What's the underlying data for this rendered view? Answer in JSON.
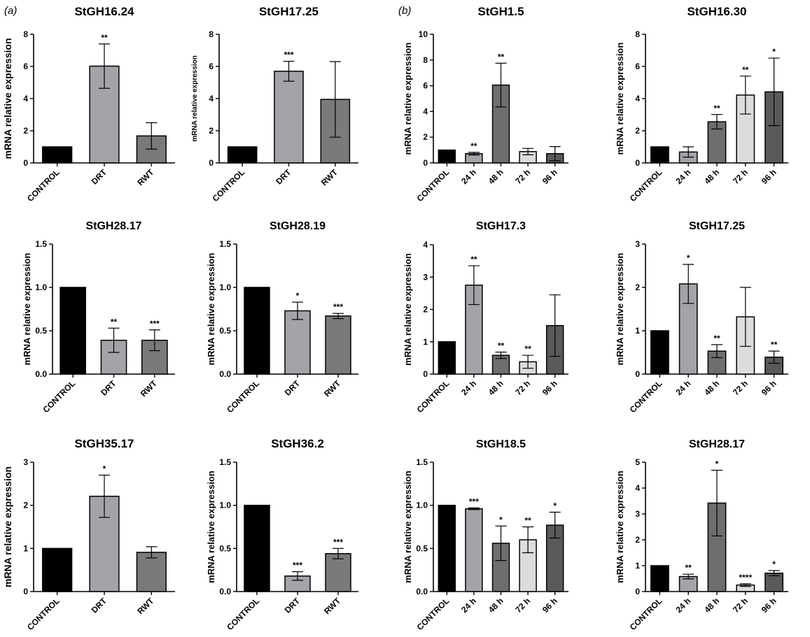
{
  "panels": [
    {
      "label": "(a)"
    },
    {
      "label": "(b)"
    }
  ],
  "chart_data": [
    {
      "type": "bar",
      "title": "StGH16.24",
      "ylabel": "mRNA relative expression",
      "ylim": [
        0,
        8
      ],
      "yticks": [
        0,
        2,
        4,
        6,
        8
      ],
      "categories": [
        "CONTROL",
        "DRT",
        "RWT"
      ],
      "values": [
        1,
        6.02,
        1.68
      ],
      "errors": [
        0,
        1.38,
        0.82
      ],
      "significance": [
        "",
        "**",
        ""
      ],
      "colors": [
        "#000000",
        "#a3a3a8",
        "#7a7a7a"
      ]
    },
    {
      "type": "bar",
      "title": "StGH17.25",
      "ylabel": "mRNA relative expression",
      "ylim": [
        0,
        8
      ],
      "yticks": [
        0,
        2,
        4,
        6,
        8
      ],
      "categories": [
        "CONTROL",
        "DRT",
        "RWT"
      ],
      "values": [
        1,
        5.7,
        3.95
      ],
      "errors": [
        0,
        0.62,
        2.35
      ],
      "significance": [
        "",
        "***",
        ""
      ],
      "colors": [
        "#000000",
        "#a3a3a8",
        "#7a7a7a"
      ]
    },
    {
      "type": "bar",
      "title": "StGH1.5",
      "ylabel": "mRNA relative expression",
      "ylim": [
        0,
        10
      ],
      "yticks": [
        0,
        2,
        4,
        6,
        8,
        10
      ],
      "categories": [
        "CONTROL",
        "24 h",
        "48 h",
        "72 h",
        "96 h"
      ],
      "values": [
        1,
        0.72,
        6.05,
        0.88,
        0.72
      ],
      "errors": [
        0,
        0.1,
        1.7,
        0.25,
        0.55
      ],
      "significance": [
        "",
        "**",
        "**",
        "",
        ""
      ],
      "colors": [
        "#000000",
        "#a3a3a8",
        "#6e6e6e",
        "#dcdcdc",
        "#5a5a5a"
      ]
    },
    {
      "type": "bar",
      "title": "StGH16.30",
      "ylabel": "mRNA relative expression",
      "ylim": [
        0,
        8
      ],
      "yticks": [
        0,
        2,
        4,
        6,
        8
      ],
      "categories": [
        "CONTROL",
        "24 h",
        "48 h",
        "72 h",
        "96 h"
      ],
      "values": [
        1,
        0.68,
        2.56,
        4.22,
        4.42
      ],
      "errors": [
        0,
        0.32,
        0.45,
        1.18,
        2.1
      ],
      "significance": [
        "",
        "",
        "**",
        "**",
        "*"
      ],
      "colors": [
        "#000000",
        "#a3a3a8",
        "#6e6e6e",
        "#dcdcdc",
        "#5a5a5a"
      ]
    },
    {
      "type": "bar",
      "title": "StGH28.17",
      "ylabel": "mRNA relative expression",
      "ylim": [
        0,
        1.5
      ],
      "yticks": [
        "0.0",
        "0.5",
        "1.0",
        "1.5"
      ],
      "categories": [
        "CONTROL",
        "DRT",
        "RWT"
      ],
      "values": [
        1,
        0.39,
        0.39
      ],
      "errors": [
        0,
        0.14,
        0.12
      ],
      "significance": [
        "",
        "**",
        "***"
      ],
      "colors": [
        "#000000",
        "#a3a3a8",
        "#7a7a7a"
      ]
    },
    {
      "type": "bar",
      "title": "StGH28.19",
      "ylabel": "mRNA relative expression",
      "ylim": [
        0,
        1.5
      ],
      "yticks": [
        "0.0",
        "0.5",
        "1.0",
        "1.5"
      ],
      "categories": [
        "CONTROL",
        "DRT",
        "RWT"
      ],
      "values": [
        1,
        0.73,
        0.67
      ],
      "errors": [
        0,
        0.1,
        0.03
      ],
      "significance": [
        "",
        "*",
        "***"
      ],
      "colors": [
        "#000000",
        "#a3a3a8",
        "#7a7a7a"
      ]
    },
    {
      "type": "bar",
      "title": "StGH17.3",
      "ylabel": "mRNA relative expression",
      "ylim": [
        0,
        4
      ],
      "yticks": [
        0,
        1,
        2,
        3,
        4
      ],
      "categories": [
        "CONTROL",
        "24 h",
        "48 h",
        "72 h",
        "96 h"
      ],
      "values": [
        1,
        2.75,
        0.58,
        0.38,
        1.5
      ],
      "errors": [
        0,
        0.6,
        0.1,
        0.2,
        0.95
      ],
      "significance": [
        "",
        "**",
        "**",
        "**",
        ""
      ],
      "colors": [
        "#000000",
        "#a3a3a8",
        "#6e6e6e",
        "#dcdcdc",
        "#5a5a5a"
      ]
    },
    {
      "type": "bar",
      "title": "StGH17.25",
      "ylabel": "mRNA relative expression",
      "ylim": [
        0,
        3
      ],
      "yticks": [
        0,
        1,
        2,
        3
      ],
      "categories": [
        "CONTROL",
        "24 h",
        "48 h",
        "72 h",
        "96 h"
      ],
      "values": [
        1,
        2.08,
        0.53,
        1.32,
        0.39
      ],
      "errors": [
        0,
        0.45,
        0.15,
        0.68,
        0.14
      ],
      "significance": [
        "",
        "*",
        "**",
        "",
        "**"
      ],
      "colors": [
        "#000000",
        "#a3a3a8",
        "#6e6e6e",
        "#dcdcdc",
        "#5a5a5a"
      ]
    },
    {
      "type": "bar",
      "title": "StGH35.17",
      "ylabel": "mRNA relative expression",
      "ylim": [
        0,
        3
      ],
      "yticks": [
        0,
        1,
        2,
        3
      ],
      "categories": [
        "CONTROL",
        "DRT",
        "RWT"
      ],
      "values": [
        1,
        2.21,
        0.91
      ],
      "errors": [
        0,
        0.49,
        0.13
      ],
      "significance": [
        "",
        "*",
        ""
      ],
      "colors": [
        "#000000",
        "#a3a3a8",
        "#7a7a7a"
      ]
    },
    {
      "type": "bar",
      "title": "StGH36.2",
      "ylabel": "mRNA relative expression",
      "ylim": [
        0,
        1.5
      ],
      "yticks": [
        "0.0",
        "0.5",
        "1.0",
        "1.5"
      ],
      "categories": [
        "CONTROL",
        "DRT",
        "RWT"
      ],
      "values": [
        1,
        0.18,
        0.44
      ],
      "errors": [
        0,
        0.05,
        0.06
      ],
      "significance": [
        "",
        "***",
        "***"
      ],
      "colors": [
        "#000000",
        "#a3a3a8",
        "#7a7a7a"
      ]
    },
    {
      "type": "bar",
      "title": "StGH18.5",
      "ylabel": "mRNA relative expression",
      "ylim": [
        0,
        1.5
      ],
      "yticks": [
        "0.0",
        "0.5",
        "1.0",
        "1.5"
      ],
      "categories": [
        "CONTROL",
        "24 h",
        "48 h",
        "72 h",
        "96 h"
      ],
      "values": [
        1,
        0.96,
        0.56,
        0.6,
        0.77
      ],
      "errors": [
        0,
        0.01,
        0.2,
        0.15,
        0.15
      ],
      "significance": [
        "",
        "***",
        "*",
        "**",
        "*"
      ],
      "colors": [
        "#000000",
        "#a3a3a8",
        "#6e6e6e",
        "#dcdcdc",
        "#5a5a5a"
      ]
    },
    {
      "type": "bar",
      "title": "StGH28.17",
      "ylabel": "mRNA relative expression",
      "ylim": [
        0,
        5
      ],
      "yticks": [
        0,
        1,
        2,
        3,
        4,
        5
      ],
      "categories": [
        "CONTROL",
        "24 h",
        "48 h",
        "72 h",
        "96 h"
      ],
      "values": [
        1,
        0.58,
        3.42,
        0.25,
        0.71
      ],
      "errors": [
        0,
        0.09,
        1.27,
        0.05,
        0.1
      ],
      "significance": [
        "",
        "**",
        "*",
        "****",
        "*"
      ],
      "colors": [
        "#000000",
        "#a3a3a8",
        "#6e6e6e",
        "#dcdcdc",
        "#5a5a5a"
      ]
    }
  ]
}
